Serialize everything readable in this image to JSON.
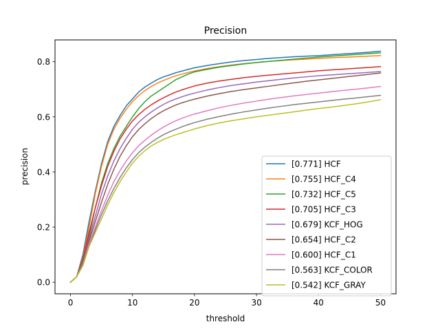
{
  "chart_data": {
    "type": "line",
    "title": "Precision",
    "xlabel": "threshold",
    "ylabel": "precision",
    "xlim": [
      -2.5,
      52.5
    ],
    "ylim": [
      -0.042,
      0.879
    ],
    "xticks": [
      0,
      10,
      20,
      30,
      40,
      50
    ],
    "xtick_labels": [
      "0",
      "10",
      "20",
      "30",
      "40",
      "50"
    ],
    "yticks": [
      0.0,
      0.2,
      0.4,
      0.6,
      0.8
    ],
    "ytick_labels": [
      "0.0",
      "0.2",
      "0.4",
      "0.6",
      "0.8"
    ],
    "grid": false,
    "legend_position": "lower right",
    "x": [
      0,
      1,
      2,
      3,
      4,
      5,
      6,
      7,
      8,
      9,
      10,
      11,
      12,
      13,
      14,
      15,
      16,
      17,
      18,
      19,
      20,
      22,
      24,
      26,
      28,
      30,
      32,
      34,
      36,
      38,
      40,
      42,
      44,
      46,
      48,
      50
    ],
    "series": [
      {
        "name": "[0.771] HCF",
        "color": "#1f77b4",
        "values": [
          0.0,
          0.02,
          0.1,
          0.22,
          0.33,
          0.43,
          0.51,
          0.565,
          0.605,
          0.64,
          0.665,
          0.69,
          0.708,
          0.722,
          0.735,
          0.745,
          0.752,
          0.76,
          0.766,
          0.772,
          0.778,
          0.786,
          0.793,
          0.799,
          0.804,
          0.808,
          0.812,
          0.815,
          0.818,
          0.82,
          0.822,
          0.825,
          0.828,
          0.831,
          0.834,
          0.838
        ]
      },
      {
        "name": "[0.755] HCF_C4",
        "color": "#ff7f0e",
        "values": [
          0.0,
          0.02,
          0.09,
          0.2,
          0.32,
          0.42,
          0.5,
          0.555,
          0.595,
          0.628,
          0.655,
          0.677,
          0.695,
          0.71,
          0.722,
          0.732,
          0.741,
          0.749,
          0.755,
          0.761,
          0.766,
          0.775,
          0.782,
          0.788,
          0.793,
          0.797,
          0.801,
          0.804,
          0.807,
          0.809,
          0.812,
          0.814,
          0.816,
          0.818,
          0.82,
          0.822
        ]
      },
      {
        "name": "[0.732] HCF_C5",
        "color": "#2ca02c",
        "values": [
          0.0,
          0.02,
          0.07,
          0.17,
          0.27,
          0.36,
          0.43,
          0.485,
          0.53,
          0.565,
          0.6,
          0.63,
          0.655,
          0.675,
          0.69,
          0.705,
          0.72,
          0.735,
          0.745,
          0.755,
          0.763,
          0.772,
          0.78,
          0.786,
          0.792,
          0.797,
          0.801,
          0.805,
          0.809,
          0.813,
          0.817,
          0.82,
          0.823,
          0.826,
          0.829,
          0.832
        ]
      },
      {
        "name": "[0.705] HCF_C3",
        "color": "#d62728",
        "values": [
          0.0,
          0.02,
          0.085,
          0.18,
          0.27,
          0.35,
          0.42,
          0.475,
          0.52,
          0.555,
          0.585,
          0.608,
          0.627,
          0.643,
          0.657,
          0.669,
          0.68,
          0.69,
          0.698,
          0.705,
          0.712,
          0.722,
          0.73,
          0.736,
          0.742,
          0.747,
          0.751,
          0.755,
          0.759,
          0.763,
          0.767,
          0.77,
          0.773,
          0.776,
          0.779,
          0.782
        ]
      },
      {
        "name": "[0.679] KCF_HOG",
        "color": "#9467bd",
        "values": [
          0.0,
          0.02,
          0.08,
          0.16,
          0.24,
          0.32,
          0.385,
          0.44,
          0.485,
          0.522,
          0.555,
          0.58,
          0.6,
          0.617,
          0.632,
          0.645,
          0.656,
          0.665,
          0.673,
          0.68,
          0.686,
          0.697,
          0.706,
          0.714,
          0.72,
          0.726,
          0.731,
          0.736,
          0.741,
          0.745,
          0.749,
          0.752,
          0.755,
          0.758,
          0.761,
          0.764
        ]
      },
      {
        "name": "[0.654] HCF_C2",
        "color": "#8c564b",
        "values": [
          0.0,
          0.02,
          0.08,
          0.15,
          0.22,
          0.29,
          0.355,
          0.41,
          0.457,
          0.495,
          0.528,
          0.554,
          0.575,
          0.593,
          0.609,
          0.622,
          0.633,
          0.643,
          0.651,
          0.658,
          0.664,
          0.675,
          0.684,
          0.692,
          0.699,
          0.705,
          0.711,
          0.717,
          0.723,
          0.729,
          0.734,
          0.739,
          0.744,
          0.749,
          0.754,
          0.759
        ]
      },
      {
        "name": "[0.600] HCF_C1",
        "color": "#e377c2",
        "values": [
          0.0,
          0.02,
          0.07,
          0.14,
          0.2,
          0.26,
          0.315,
          0.365,
          0.405,
          0.44,
          0.47,
          0.495,
          0.515,
          0.533,
          0.549,
          0.563,
          0.575,
          0.586,
          0.595,
          0.603,
          0.61,
          0.622,
          0.633,
          0.642,
          0.65,
          0.657,
          0.664,
          0.67,
          0.676,
          0.681,
          0.686,
          0.691,
          0.696,
          0.7,
          0.705,
          0.71
        ]
      },
      {
        "name": "[0.563] KCF_COLOR",
        "color": "#7f7f7f",
        "values": [
          0.0,
          0.02,
          0.07,
          0.13,
          0.19,
          0.245,
          0.295,
          0.34,
          0.38,
          0.415,
          0.445,
          0.47,
          0.49,
          0.507,
          0.522,
          0.535,
          0.546,
          0.555,
          0.564,
          0.572,
          0.579,
          0.591,
          0.601,
          0.61,
          0.618,
          0.625,
          0.632,
          0.638,
          0.644,
          0.649,
          0.654,
          0.659,
          0.664,
          0.668,
          0.673,
          0.678
        ]
      },
      {
        "name": "[0.542] KCF_GRAY",
        "color": "#bcbd22",
        "values": [
          0.0,
          0.02,
          0.06,
          0.13,
          0.18,
          0.23,
          0.28,
          0.325,
          0.365,
          0.4,
          0.432,
          0.457,
          0.477,
          0.494,
          0.507,
          0.518,
          0.527,
          0.535,
          0.542,
          0.549,
          0.556,
          0.568,
          0.578,
          0.586,
          0.593,
          0.6,
          0.606,
          0.612,
          0.618,
          0.624,
          0.63,
          0.635,
          0.641,
          0.647,
          0.654,
          0.662
        ]
      }
    ]
  }
}
